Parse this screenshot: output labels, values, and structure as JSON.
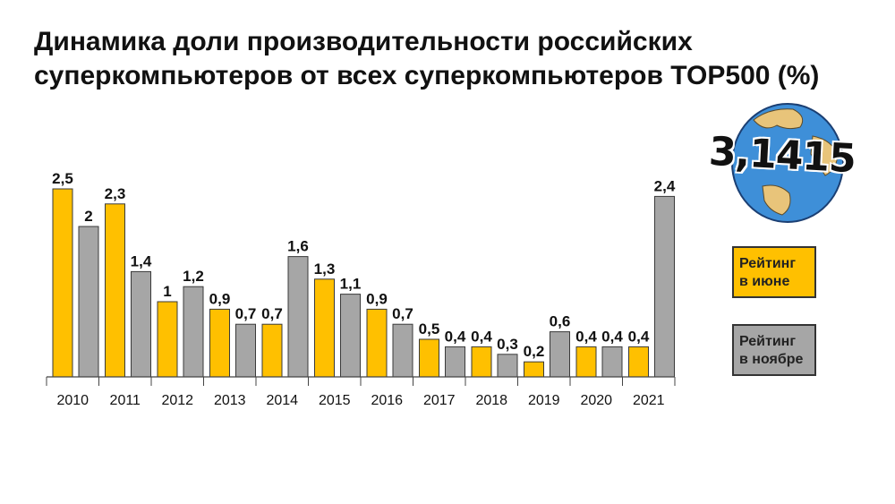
{
  "title_lines": [
    "Динамика доли производительности российских",
    "суперкомпьютеров от всех суперкомпьютеров TOP500 (%)"
  ],
  "logo": {
    "text": "3,1415",
    "icon": "globe-icon",
    "ocean_color": "#3E8FD8",
    "land_color": "#E8C47A"
  },
  "legend": {
    "june": {
      "label_line1": "Рейтинг",
      "label_line2": "в июне",
      "color": "#FFC000"
    },
    "november": {
      "label_line1": "Рейтинг",
      "label_line2": "в ноябре",
      "color": "#A6A6A6"
    }
  },
  "chart_data": {
    "type": "bar",
    "title": "Динамика доли производительности российских суперкомпьютеров от всех суперкомпьютеров TOP500 (%)",
    "categories": [
      "2010",
      "2011",
      "2012",
      "2013",
      "2014",
      "2015",
      "2016",
      "2017",
      "2018",
      "2019",
      "2020",
      "2021"
    ],
    "series": [
      {
        "name": "Рейтинг в июне",
        "color": "#FFC000",
        "values": [
          2.5,
          2.3,
          1,
          0.9,
          0.7,
          1.3,
          0.9,
          0.5,
          0.4,
          0.2,
          0.4,
          0.4
        ],
        "labels": [
          "2,5",
          "2,3",
          "1",
          "0,9",
          "0,7",
          "1,3",
          "0,9",
          "0,5",
          "0,4",
          "0,2",
          "0,4",
          "0,4"
        ]
      },
      {
        "name": "Рейтинг в ноябре",
        "color": "#A6A6A6",
        "values": [
          2,
          1.4,
          1.2,
          0.7,
          1.6,
          1.1,
          0.7,
          0.4,
          0.3,
          0.6,
          0.4,
          2.4
        ],
        "labels": [
          "2",
          "1,4",
          "1,2",
          "0,7",
          "1,6",
          "1,1",
          "0,7",
          "0,4",
          "0,3",
          "0,6",
          "0,4",
          "2,4"
        ]
      }
    ],
    "ylim": [
      0,
      2.5
    ],
    "xlabel": "",
    "ylabel": "",
    "grid": false,
    "legend_position": "right"
  }
}
